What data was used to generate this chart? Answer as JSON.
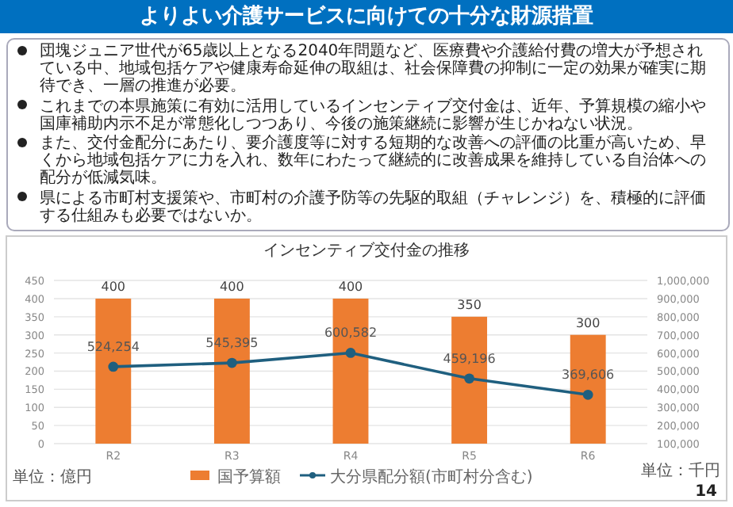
{
  "chart_data": {
    "type": "bar",
    "title": "インセンティブ交付金の推移",
    "categories": [
      "R2",
      "R3",
      "R4",
      "R5",
      "R6"
    ],
    "series": [
      {
        "name": "国予算額",
        "type": "bar",
        "color": "#ed7d31",
        "values": [
          400,
          400,
          400,
          350,
          300
        ]
      },
      {
        "name": "大分県配分額(市町村分含む)",
        "type": "line",
        "axis": "y2",
        "color": "#1f5f7f",
        "marker": "circle",
        "values": [
          524254,
          545395,
          600582,
          459196,
          369606
        ],
        "value_labels": [
          "524,254",
          "545,395",
          "600,582",
          "459,196",
          "369,606"
        ]
      }
    ],
    "ylim": [
      0,
      450
    ],
    "yticks": [
      0,
      50,
      100,
      150,
      200,
      250,
      300,
      350,
      400,
      450
    ],
    "y2lim": [
      100000,
      1000000
    ],
    "y2ticks": [
      {
        "value": 100000,
        "label": "100,000"
      },
      {
        "value": 200000,
        "label": "200,000"
      },
      {
        "value": 300000,
        "label": "300,000"
      },
      {
        "value": 400000,
        "label": "400,000"
      },
      {
        "value": 500000,
        "label": "500,000"
      },
      {
        "value": 600000,
        "label": "600,000"
      },
      {
        "value": 700000,
        "label": "700,000"
      },
      {
        "value": 800000,
        "label": "800,000"
      },
      {
        "value": 900000,
        "label": "900,000"
      },
      {
        "value": 1000000,
        "label": "1,000,000"
      }
    ],
    "data_labels": true,
    "grid": "y",
    "legend": "bottom",
    "annotations": [
      "よりよい介護サービスに向けての十分な財源措置",
      "団塊ジュニア世代が65歳以上となる2040年問題など、医療費や介護給付費の増大が予想されている中、地域包括ケアや健康寿命延伸の取組は、社会保障費の抑制に一定の効果が確実に期待でき、一層の推進が必要。",
      "これまでの本県施策に有効に活用しているインセンティブ交付金は、近年、予算規模の縮小や国庫補助内示不足が常態化しつつあり、今後の施策継続に影響が生じかねない状況。",
      "また、交付金配分にあたり、要介護度等に対する短期的な改善への評価の比重が高いため、早くから地域包括ケアに力を入れ、数年にわたって継続的に改善成果を維持している自治体への配分が低減気味。",
      "県による市町村支援策や、市町村の介護予防等の先駆的取組（チャレンジ）を、積極的に評価する仕組みも必要ではないか。",
      "単位：億円",
      "単位：千円",
      "14"
    ]
  }
}
